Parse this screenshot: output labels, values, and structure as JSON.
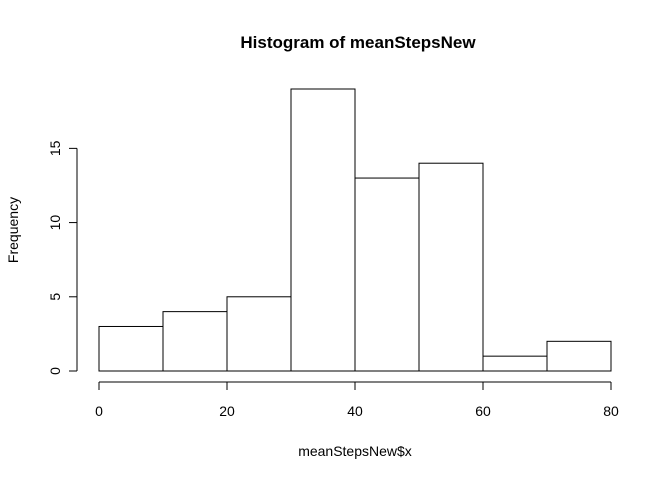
{
  "chart_data": {
    "type": "bar",
    "title": "Histogram of meanStepsNew",
    "xlabel": "meanStepsNew$x",
    "ylabel": "Frequency",
    "bins": [
      {
        "from": 0,
        "to": 10,
        "count": 3
      },
      {
        "from": 10,
        "to": 20,
        "count": 4
      },
      {
        "from": 20,
        "to": 30,
        "count": 5
      },
      {
        "from": 30,
        "to": 40,
        "count": 19
      },
      {
        "from": 40,
        "to": 50,
        "count": 13
      },
      {
        "from": 50,
        "to": 60,
        "count": 14
      },
      {
        "from": 60,
        "to": 70,
        "count": 1
      },
      {
        "from": 70,
        "to": 80,
        "count": 2
      }
    ],
    "xlim": [
      0,
      80
    ],
    "ylim": [
      0,
      19
    ],
    "x_ticks": [
      0,
      20,
      40,
      60,
      80
    ],
    "y_ticks": [
      0,
      5,
      10,
      15
    ],
    "grid": false,
    "legend": "none"
  }
}
